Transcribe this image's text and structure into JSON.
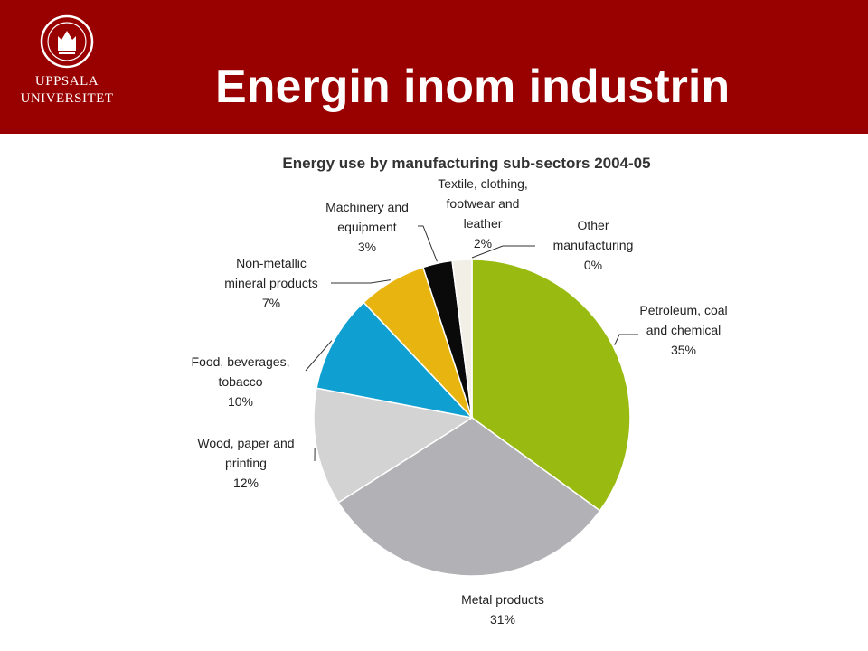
{
  "slide": {
    "title": "Energin inom industrin",
    "logo": {
      "line1": "UPPSALA",
      "line2": "UNIVERSITET",
      "icon": "university-seal-icon"
    },
    "colors": {
      "header": "#990000"
    }
  },
  "chart_data": {
    "type": "pie",
    "title": "Energy use by manufacturing sub-sectors 2004-05",
    "slices": [
      {
        "label_lines": [
          "Petroleum, coal",
          "and chemical"
        ],
        "value": 35,
        "value_label": "35%",
        "color": "#99bb11"
      },
      {
        "label_lines": [
          "Metal products"
        ],
        "value": 31,
        "value_label": "31%",
        "color": "#b2b2b6"
      },
      {
        "label_lines": [
          "Wood, paper and",
          "printing"
        ],
        "value": 12,
        "value_label": "12%",
        "color": "#d3d3d3"
      },
      {
        "label_lines": [
          "Food, beverages,",
          "tobacco"
        ],
        "value": 10,
        "value_label": "10%",
        "color": "#109fd1"
      },
      {
        "label_lines": [
          "Non-metallic",
          "mineral products"
        ],
        "value": 7,
        "value_label": "7%",
        "color": "#e8b510"
      },
      {
        "label_lines": [
          "Machinery and",
          "equipment"
        ],
        "value": 3,
        "value_label": "3%",
        "color": "#0a0a0a"
      },
      {
        "label_lines": [
          "Textile, clothing,",
          "footwear and",
          "leather"
        ],
        "value": 2,
        "value_label": "2%",
        "color": "#f2efe6"
      },
      {
        "label_lines": [
          "Other",
          "manufacturing"
        ],
        "value": 0,
        "value_label": "0%",
        "color": "#e9e9e9"
      }
    ]
  }
}
